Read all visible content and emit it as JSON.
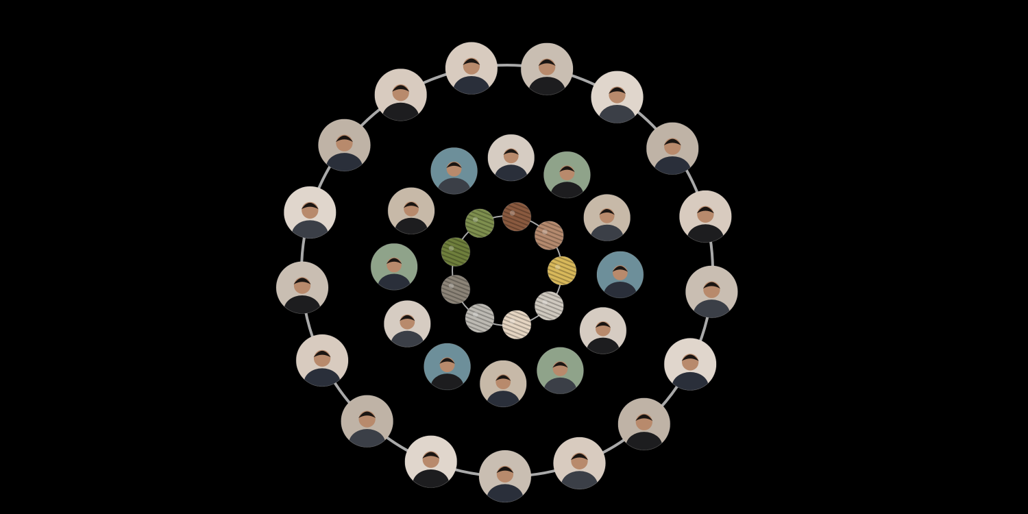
{
  "scene": {
    "background": "#000000",
    "ring_color": "#a9a9a9"
  },
  "rings": [
    {
      "id": "outer",
      "subject": "people",
      "count": 17,
      "palette": [
        "#d8cbbf",
        "#c9beb2",
        "#e0d6cc",
        "#bfb3a6"
      ]
    },
    {
      "id": "middle",
      "subject": "people",
      "count": 12,
      "palette": [
        "#d6ccc2",
        "#8fa38a",
        "#c7b9a8",
        "#6d8f9a"
      ]
    },
    {
      "id": "inner",
      "subject": "materials",
      "count": 9,
      "items": [
        "green-seeds",
        "brown-fibers",
        "hand-with-fibers",
        "yellow-fibers",
        "twine-ball",
        "pale-fibers",
        "grey-beads",
        "coiled-rope",
        "green-fibers"
      ],
      "palette": [
        "#7e8f4e",
        "#8a5a3f",
        "#b58a6e",
        "#d8b85a",
        "#cfc9bf",
        "#e5d5c2",
        "#bdbab3",
        "#8c8478",
        "#6f7f3c"
      ]
    }
  ]
}
